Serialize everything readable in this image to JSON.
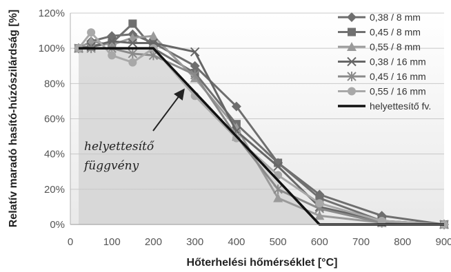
{
  "chart_data": {
    "type": "line",
    "xlabel": "Hőterhelési hőmérséklet [°C]",
    "ylabel": "Relatív maradó hasító-húzószilárdság [%]",
    "xlim": [
      0,
      900
    ],
    "ylim": [
      0,
      120
    ],
    "xticks": [
      "0",
      "100",
      "200",
      "300",
      "400",
      "500",
      "600",
      "700",
      "800",
      "900"
    ],
    "yticks": [
      "0%",
      "20%",
      "40%",
      "60%",
      "80%",
      "100%",
      "120%"
    ],
    "grid": "horizontal",
    "legend_position": "top-right",
    "annotation": {
      "line1": "helyettesítő",
      "line2": "függvény",
      "points_to": [
        285,
        80
      ]
    },
    "series": [
      {
        "name": "0,38 / 8 mm",
        "marker": "diamond",
        "color": "#6e6e6e",
        "x": [
          20,
          50,
          100,
          150,
          200,
          300,
          400,
          500,
          600,
          750,
          900
        ],
        "y": [
          100,
          104,
          107,
          108,
          103,
          90,
          67,
          35,
          17,
          5,
          0
        ]
      },
      {
        "name": "0,45 / 8 mm",
        "marker": "square",
        "color": "#707070",
        "x": [
          20,
          50,
          100,
          150,
          200,
          300,
          400,
          500,
          600,
          750,
          900
        ],
        "y": [
          100,
          101,
          103,
          114,
          100,
          86,
          57,
          35,
          15,
          2,
          0
        ]
      },
      {
        "name": "0,55 / 8 mm",
        "marker": "triangle",
        "color": "#9a9a9a",
        "x": [
          20,
          50,
          100,
          150,
          200,
          300,
          400,
          500,
          600,
          750,
          900
        ],
        "y": [
          100,
          104,
          102,
          106,
          107,
          83,
          55,
          15,
          5,
          1,
          0
        ]
      },
      {
        "name": "0,38 / 16 mm",
        "marker": "x",
        "color": "#666666",
        "x": [
          20,
          50,
          100,
          150,
          200,
          300,
          400,
          500,
          600,
          750,
          900
        ],
        "y": [
          100,
          101,
          104,
          103,
          103,
          98,
          53,
          33,
          10,
          2,
          0
        ]
      },
      {
        "name": "0,45 / 16 mm",
        "marker": "star",
        "color": "#8a8a8a",
        "x": [
          20,
          50,
          100,
          150,
          200,
          300,
          400,
          500,
          600,
          750,
          900
        ],
        "y": [
          100,
          100,
          100,
          97,
          96,
          85,
          50,
          20,
          9,
          1,
          0
        ]
      },
      {
        "name": "0,55 / 16 mm",
        "marker": "circle",
        "color": "#a8a8a8",
        "x": [
          20,
          50,
          100,
          150,
          200,
          300,
          400,
          500,
          600,
          750,
          900
        ],
        "y": [
          100,
          109,
          96,
          92,
          100,
          73,
          49,
          28,
          12,
          2,
          0
        ]
      },
      {
        "name": "helyettesítő fv.",
        "marker": "none",
        "color": "#111111",
        "x": [
          20,
          200,
          600,
          900
        ],
        "y": [
          100,
          100,
          0,
          0
        ]
      }
    ]
  }
}
